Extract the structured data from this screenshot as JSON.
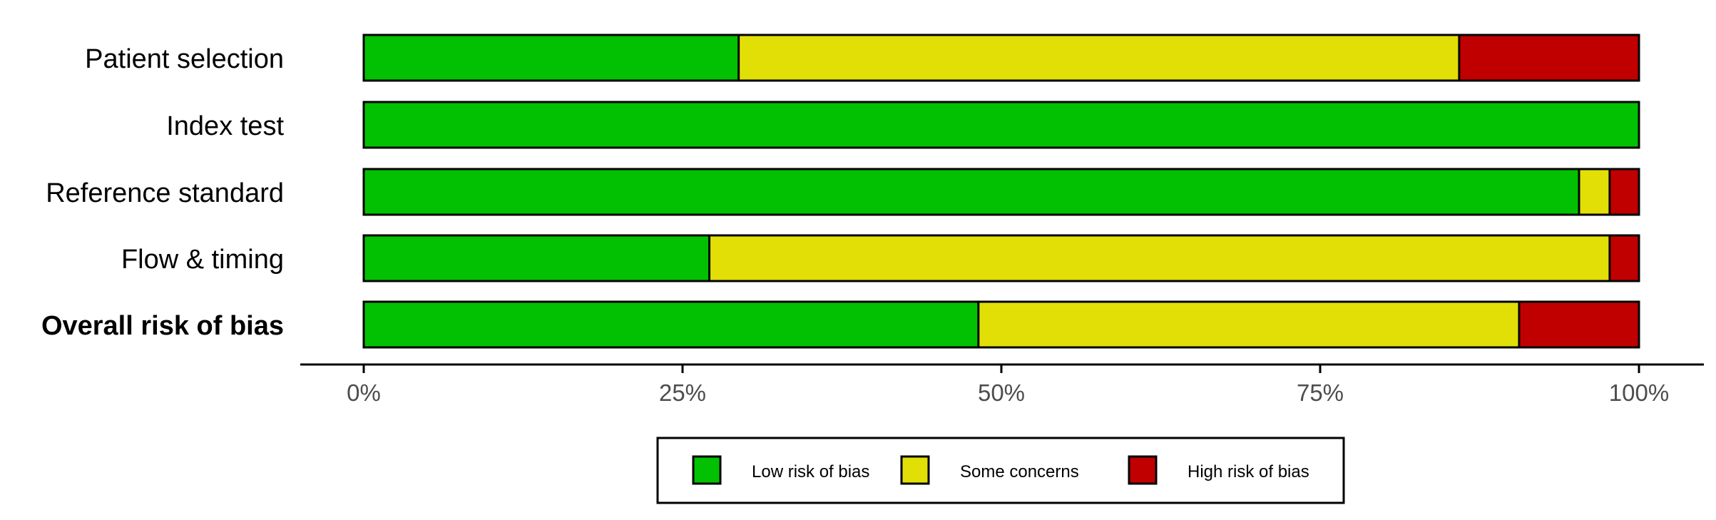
{
  "chart_data": {
    "type": "bar",
    "orientation": "horizontal",
    "stacked": true,
    "categories": [
      "Patient selection",
      "Index test",
      "Reference standard",
      "Flow & timing",
      "Overall risk of bias"
    ],
    "emphasized_category": "Overall risk of bias",
    "series": [
      {
        "name": "Low risk of bias",
        "color": "#02c102",
        "values": [
          29.4,
          100,
          95.3,
          27.1,
          48.2
        ]
      },
      {
        "name": "Some concerns",
        "color": "#e2df07",
        "values": [
          56.5,
          0,
          2.4,
          70.6,
          42.4
        ]
      },
      {
        "name": "High risk of bias",
        "color": "#c00000",
        "values": [
          14.1,
          0,
          2.3,
          2.3,
          9.4
        ]
      }
    ],
    "xlim": [
      0,
      100
    ],
    "xticks": [
      "0%",
      "25%",
      "50%",
      "75%",
      "100%"
    ],
    "xlabel": "",
    "ylabel": "",
    "grid": false,
    "legend_position": "bottom"
  }
}
